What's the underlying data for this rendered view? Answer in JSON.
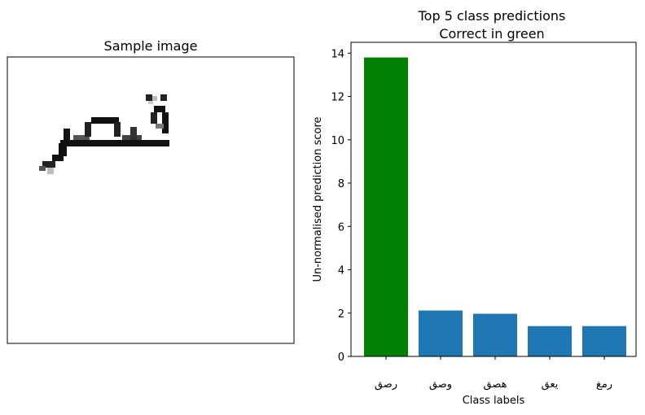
{
  "left_panel": {
    "title": "Sample image",
    "image_icon": "handwritten-arabic-word-pixel-art"
  },
  "chart_data": {
    "type": "bar",
    "title": "Top 5 class predictions",
    "subtitle": "Correct in green",
    "xlabel": "Class labels",
    "ylabel": "Un-normalised prediction score",
    "categories": [
      "رصق",
      "وصق",
      "هصق",
      "يعق",
      "رمغ"
    ],
    "values": [
      13.8,
      2.12,
      1.97,
      1.4,
      1.4
    ],
    "bar_colors": [
      "#008000",
      "#1f77b4",
      "#1f77b4",
      "#1f77b4",
      "#1f77b4"
    ],
    "ylim": [
      0,
      14.5
    ],
    "yticks": [
      0,
      2,
      4,
      6,
      8,
      10,
      12,
      14
    ],
    "grid": false,
    "legend": "none"
  }
}
